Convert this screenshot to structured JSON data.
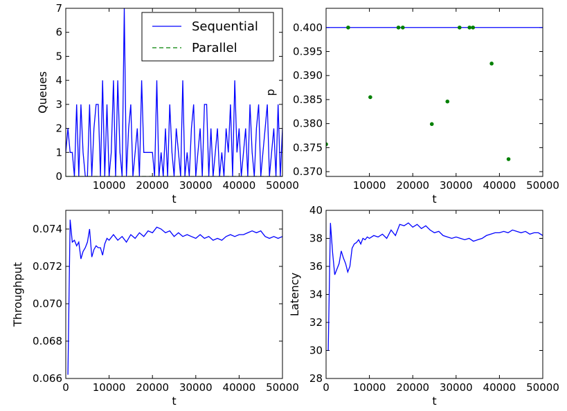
{
  "colors": {
    "sequential": "#0000ff",
    "parallel": "#008000",
    "p_points": "#008000",
    "p_line": "#0000ff",
    "throughput": "#0000ff",
    "latency": "#0000ff"
  },
  "chart_data": [
    {
      "id": "queues",
      "type": "line",
      "xlabel": "t",
      "ylabel": "Queues",
      "xlim": [
        0,
        50000
      ],
      "ylim": [
        0,
        7
      ],
      "xticks": [
        10000,
        20000,
        30000,
        40000,
        50000
      ],
      "yticks": [
        0,
        1,
        2,
        3,
        4,
        5,
        6,
        7
      ],
      "grid": false,
      "legend_position": "top-right",
      "series": [
        {
          "name": "Sequential",
          "style": "solid",
          "x": [
            0,
            500,
            1000,
            1500,
            2000,
            2500,
            3000,
            3500,
            4000,
            4500,
            5000,
            5500,
            6000,
            6500,
            7000,
            7500,
            8000,
            8500,
            9000,
            9500,
            10000,
            10500,
            11000,
            11500,
            12000,
            12500,
            13000,
            13500,
            14000,
            14500,
            15000,
            15500,
            16000,
            16500,
            17000,
            17500,
            18000,
            18500,
            19000,
            19500,
            20000,
            20500,
            21000,
            21500,
            22000,
            22500,
            23000,
            23500,
            24000,
            24500,
            25000,
            25500,
            26000,
            26500,
            27000,
            27500,
            28000,
            28500,
            29000,
            29500,
            30000,
            30500,
            31000,
            31500,
            32000,
            32500,
            33000,
            33500,
            34000,
            34500,
            35000,
            35500,
            36000,
            36500,
            37000,
            37500,
            38000,
            38500,
            39000,
            39500,
            40000,
            40500,
            41000,
            41500,
            42000,
            42500,
            43000,
            43500,
            44000,
            44500,
            45000,
            45500,
            46000,
            46500,
            47000,
            47500,
            48000,
            48500,
            49000,
            49500,
            50000
          ],
          "values": [
            1,
            2,
            1,
            1,
            0,
            3,
            0,
            3,
            1,
            0,
            0,
            3,
            0,
            2,
            3,
            3,
            0,
            4,
            0,
            3,
            0,
            1,
            4,
            0,
            4,
            1,
            0,
            7,
            0,
            2,
            3,
            0,
            1,
            2,
            0,
            4,
            1,
            1,
            1,
            1,
            1,
            0,
            4,
            0,
            1,
            0,
            2,
            0,
            3,
            1,
            0,
            2,
            1,
            0,
            4,
            0,
            1,
            0,
            2,
            3,
            0,
            1,
            2,
            0,
            3,
            3,
            0,
            2,
            0,
            1,
            2,
            0,
            1,
            0,
            2,
            1,
            3,
            0,
            4,
            1,
            2,
            0,
            1,
            2,
            0,
            3,
            1,
            0,
            2,
            3,
            0,
            1,
            2,
            3,
            0,
            1,
            2,
            0,
            3,
            0,
            2
          ]
        },
        {
          "name": "Parallel",
          "style": "dashed",
          "x": [
            0,
            50000
          ],
          "values": [
            0,
            0
          ]
        }
      ]
    },
    {
      "id": "p",
      "type": "scatter",
      "xlabel": "t",
      "ylabel": "p",
      "xlim": [
        0,
        50000
      ],
      "ylim": [
        0.369,
        0.404
      ],
      "xticks": [
        10000,
        20000,
        30000,
        40000,
        50000
      ],
      "yticks": [
        0.37,
        0.375,
        0.38,
        0.385,
        0.39,
        0.395,
        0.4
      ],
      "ytick_labels": [
        "0.370",
        "0.375",
        "0.380",
        "0.385",
        "0.390",
        "0.395",
        "0.400"
      ],
      "grid": false,
      "reference_line": 0.4,
      "points": [
        {
          "x": 0,
          "y": 0.3757
        },
        {
          "x": 5100,
          "y": 0.4
        },
        {
          "x": 10200,
          "y": 0.3855
        },
        {
          "x": 16700,
          "y": 0.4
        },
        {
          "x": 17700,
          "y": 0.4
        },
        {
          "x": 24400,
          "y": 0.3799
        },
        {
          "x": 28000,
          "y": 0.3846
        },
        {
          "x": 30800,
          "y": 0.4
        },
        {
          "x": 33100,
          "y": 0.4
        },
        {
          "x": 33900,
          "y": 0.4
        },
        {
          "x": 38200,
          "y": 0.3925
        },
        {
          "x": 42100,
          "y": 0.3726
        }
      ]
    },
    {
      "id": "throughput",
      "type": "line",
      "xlabel": "t",
      "ylabel": "Throughput",
      "xlim": [
        0,
        50000
      ],
      "ylim": [
        0.066,
        0.075
      ],
      "xticks": [
        0,
        10000,
        20000,
        30000,
        40000,
        50000
      ],
      "yticks": [
        0.066,
        0.068,
        0.07,
        0.072,
        0.074
      ],
      "ytick_labels": [
        "0.066",
        "0.068",
        "0.070",
        "0.072",
        "0.074"
      ],
      "grid": false,
      "series": [
        {
          "name": "",
          "x": [
            500,
            1000,
            1500,
            2000,
            2500,
            3000,
            3500,
            4000,
            4500,
            5000,
            5500,
            6000,
            6500,
            7000,
            7500,
            8000,
            8500,
            9000,
            9500,
            10000,
            11000,
            12000,
            13000,
            14000,
            15000,
            16000,
            17000,
            18000,
            19000,
            20000,
            21000,
            22000,
            23000,
            24000,
            25000,
            26000,
            27000,
            28000,
            29000,
            30000,
            31000,
            32000,
            33000,
            34000,
            35000,
            36000,
            37000,
            38000,
            39000,
            40000,
            41000,
            42000,
            43000,
            44000,
            45000,
            46000,
            47000,
            48000,
            49000,
            50000
          ],
          "values": [
            0.0662,
            0.0745,
            0.0733,
            0.0734,
            0.0731,
            0.0733,
            0.0724,
            0.0728,
            0.073,
            0.0733,
            0.074,
            0.0725,
            0.0729,
            0.0731,
            0.073,
            0.073,
            0.0726,
            0.0732,
            0.0735,
            0.0734,
            0.0737,
            0.0734,
            0.0736,
            0.0733,
            0.0737,
            0.0735,
            0.0738,
            0.0736,
            0.0739,
            0.0738,
            0.0741,
            0.074,
            0.0738,
            0.0739,
            0.0736,
            0.0738,
            0.0736,
            0.0737,
            0.0736,
            0.0735,
            0.0737,
            0.0735,
            0.0736,
            0.0734,
            0.0735,
            0.0734,
            0.0736,
            0.0737,
            0.0736,
            0.0737,
            0.0737,
            0.0738,
            0.0739,
            0.0738,
            0.0739,
            0.0736,
            0.0735,
            0.0736,
            0.0735,
            0.0736
          ]
        }
      ]
    },
    {
      "id": "latency",
      "type": "line",
      "xlabel": "t",
      "ylabel": "Latency",
      "xlim": [
        0,
        50000
      ],
      "ylim": [
        28,
        40
      ],
      "xticks": [
        0,
        10000,
        20000,
        30000,
        40000,
        50000
      ],
      "yticks": [
        28,
        30,
        32,
        34,
        36,
        38,
        40
      ],
      "grid": false,
      "series": [
        {
          "name": "",
          "x": [
            500,
            1000,
            1500,
            2000,
            2500,
            3000,
            3500,
            4000,
            4500,
            5000,
            5500,
            6000,
            6500,
            7000,
            7500,
            8000,
            8500,
            9000,
            9500,
            10000,
            11000,
            12000,
            13000,
            14000,
            15000,
            16000,
            17000,
            18000,
            19000,
            20000,
            21000,
            22000,
            23000,
            24000,
            25000,
            26000,
            27000,
            28000,
            29000,
            30000,
            31000,
            32000,
            33000,
            34000,
            35000,
            36000,
            37000,
            38000,
            39000,
            40000,
            41000,
            42000,
            43000,
            44000,
            45000,
            46000,
            47000,
            48000,
            49000,
            50000
          ],
          "values": [
            30.0,
            39.1,
            37.0,
            35.4,
            35.8,
            36.2,
            37.1,
            36.6,
            36.2,
            35.6,
            36.0,
            37.3,
            37.6,
            37.7,
            37.9,
            37.6,
            38.0,
            37.9,
            38.1,
            38.0,
            38.2,
            38.1,
            38.3,
            38.0,
            38.6,
            38.2,
            39.0,
            38.9,
            39.1,
            38.8,
            39.0,
            38.7,
            38.9,
            38.6,
            38.4,
            38.5,
            38.2,
            38.1,
            38.0,
            38.1,
            38.0,
            37.9,
            38.0,
            37.8,
            37.9,
            38.0,
            38.2,
            38.3,
            38.4,
            38.4,
            38.5,
            38.4,
            38.6,
            38.5,
            38.4,
            38.5,
            38.3,
            38.4,
            38.4,
            38.2
          ]
        }
      ]
    }
  ]
}
